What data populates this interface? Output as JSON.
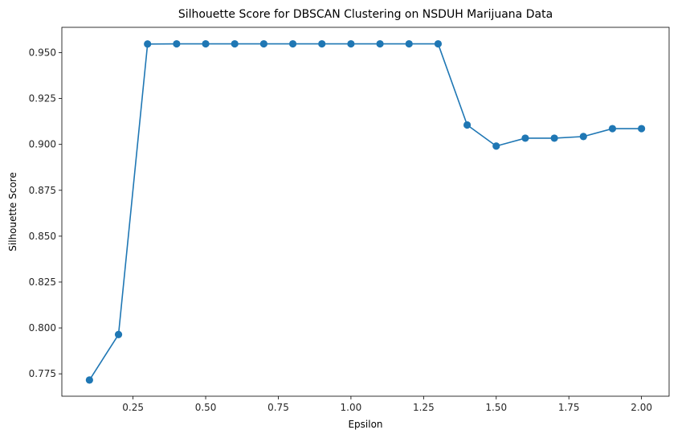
{
  "chart_data": {
    "type": "line",
    "title": "Silhouette Score for DBSCAN Clustering on NSDUH Marijuana Data",
    "xlabel": "Epsilon",
    "ylabel": "Silhouette Score",
    "xlim": [
      0.005,
      2.095
    ],
    "ylim": [
      0.7628,
      0.9638
    ],
    "xticks": [
      0.25,
      0.5,
      0.75,
      1.0,
      1.25,
      1.5,
      1.75,
      2.0
    ],
    "xtick_labels": [
      "0.25",
      "0.50",
      "0.75",
      "1.00",
      "1.25",
      "1.50",
      "1.75",
      "2.00"
    ],
    "yticks": [
      0.775,
      0.8,
      0.825,
      0.85,
      0.875,
      0.9,
      0.925,
      0.95
    ],
    "ytick_labels": [
      "0.775",
      "0.800",
      "0.825",
      "0.850",
      "0.875",
      "0.900",
      "0.925",
      "0.950"
    ],
    "grid": false,
    "series": [
      {
        "color": "#1f77b4",
        "marker": "circle",
        "x": [
          0.1,
          0.2,
          0.3,
          0.4,
          0.5,
          0.6,
          0.7,
          0.8,
          0.9,
          1.0,
          1.1,
          1.2,
          1.3,
          1.4,
          1.5,
          1.6,
          1.7,
          1.8,
          1.9,
          2.0
        ],
        "y": [
          0.7716,
          0.7964,
          0.9547,
          0.9548,
          0.9548,
          0.9548,
          0.9548,
          0.9548,
          0.9548,
          0.9548,
          0.9548,
          0.9548,
          0.9548,
          0.9106,
          0.8991,
          0.9034,
          0.9034,
          0.9043,
          0.9086,
          0.9086
        ]
      }
    ]
  }
}
